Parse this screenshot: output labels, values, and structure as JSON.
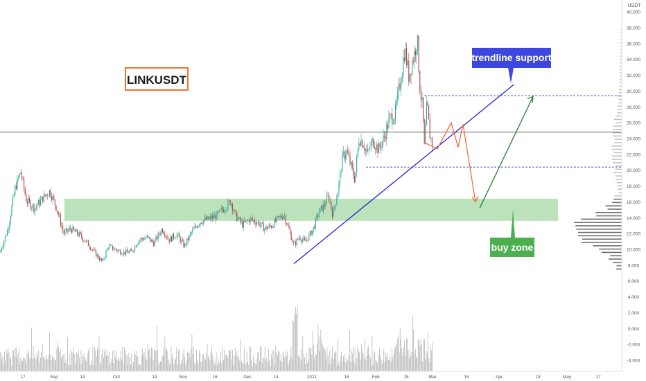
{
  "chart_data": {
    "type": "candlestick",
    "symbol": "LINKUSDT",
    "currency_label": "USDT",
    "y_ticks": [
      40,
      38,
      36,
      34,
      32,
      30,
      28,
      26,
      24,
      22,
      20,
      18,
      16,
      14,
      12,
      10,
      8,
      6,
      4,
      2,
      0,
      -2,
      -4
    ],
    "y_tick_labels": [
      "40.000",
      "38.000",
      "36.000",
      "34.000",
      "32.000",
      "30.000",
      "28.000",
      "26.000",
      "24.000",
      "22.000",
      "20.000",
      "18.000",
      "16.000",
      "14.000",
      "12.000",
      "10.000",
      "8.000",
      "6.000",
      "4.000",
      "2.000",
      "0.000",
      "-2.000",
      "-4.000"
    ],
    "ylim": [
      -5.4,
      41.5
    ],
    "x_ticks": [
      {
        "label": "17",
        "pos": 33
      },
      {
        "label": "Sep",
        "pos": 78
      },
      {
        "label": "14",
        "pos": 119
      },
      {
        "label": "Oct",
        "pos": 168
      },
      {
        "label": "19",
        "pos": 223
      },
      {
        "label": "Nov",
        "pos": 264
      },
      {
        "label": "16",
        "pos": 310
      },
      {
        "label": "Dec",
        "pos": 357
      },
      {
        "label": "14",
        "pos": 398
      },
      {
        "label": "2021",
        "pos": 450
      },
      {
        "label": "18",
        "pos": 500
      },
      {
        "label": "Feb",
        "pos": 542
      },
      {
        "label": "15",
        "pos": 586
      },
      {
        "label": "Mar",
        "pos": 624
      },
      {
        "label": "15",
        "pos": 673
      },
      {
        "label": "Apr",
        "pos": 720
      },
      {
        "label": "19",
        "pos": 776
      },
      {
        "label": "May",
        "pos": 818
      },
      {
        "label": "17",
        "pos": 863
      }
    ],
    "price_path": [
      [
        0,
        9.6
      ],
      [
        12,
        12.8
      ],
      [
        22,
        17.8
      ],
      [
        30,
        19.8
      ],
      [
        38,
        16.2
      ],
      [
        50,
        15.2
      ],
      [
        62,
        16.5
      ],
      [
        72,
        17.4
      ],
      [
        82,
        15.1
      ],
      [
        92,
        12.0
      ],
      [
        102,
        12.6
      ],
      [
        115,
        11.8
      ],
      [
        128,
        10.6
      ],
      [
        140,
        9.2
      ],
      [
        148,
        8.4
      ],
      [
        156,
        10.4
      ],
      [
        166,
        10.0
      ],
      [
        178,
        9.6
      ],
      [
        190,
        9.7
      ],
      [
        200,
        11.2
      ],
      [
        212,
        11.5
      ],
      [
        222,
        10.8
      ],
      [
        234,
        12.6
      ],
      [
        244,
        11.2
      ],
      [
        255,
        11.9
      ],
      [
        266,
        10.4
      ],
      [
        276,
        12.1
      ],
      [
        288,
        13.5
      ],
      [
        300,
        13.8
      ],
      [
        312,
        14.2
      ],
      [
        322,
        15.1
      ],
      [
        333,
        16.1
      ],
      [
        340,
        14.2
      ],
      [
        350,
        13.1
      ],
      [
        360,
        13.8
      ],
      [
        372,
        13.4
      ],
      [
        382,
        12.6
      ],
      [
        392,
        13.0
      ],
      [
        402,
        13.9
      ],
      [
        410,
        14.4
      ],
      [
        418,
        12.2
      ],
      [
        424,
        10.5
      ],
      [
        432,
        11.6
      ],
      [
        440,
        10.9
      ],
      [
        452,
        12.6
      ],
      [
        460,
        14.7
      ],
      [
        468,
        15.6
      ],
      [
        474,
        16.8
      ],
      [
        480,
        14.4
      ],
      [
        488,
        17.6
      ],
      [
        494,
        21.6
      ],
      [
        500,
        22.4
      ],
      [
        506,
        20.6
      ],
      [
        512,
        18.8
      ],
      [
        518,
        24.1
      ],
      [
        524,
        23.4
      ],
      [
        530,
        22.0
      ],
      [
        538,
        23.8
      ],
      [
        546,
        22.6
      ],
      [
        554,
        24.1
      ],
      [
        562,
        26.5
      ],
      [
        570,
        27.0
      ],
      [
        578,
        31.5
      ],
      [
        584,
        35.4
      ],
      [
        590,
        31.8
      ],
      [
        594,
        33.6
      ],
      [
        598,
        34.8
      ],
      [
        602,
        36.8
      ],
      [
        606,
        30.2
      ],
      [
        610,
        27.6
      ],
      [
        612,
        22.5
      ],
      [
        616,
        28.6
      ],
      [
        620,
        24.5
      ],
      [
        624,
        23.2
      ]
    ],
    "volume_scale_max": 12,
    "horizontal_levels": [
      {
        "value": 29.419,
        "label": "29.419",
        "style": "dashed",
        "color": "#2f3fd6"
      },
      {
        "value": 20.398,
        "label": "20.398",
        "style": "dashed",
        "color": "#2f3fd6"
      },
      {
        "value": 24.806,
        "label": "24.806",
        "sublabel": "03:15:27",
        "style": "solid",
        "color": "#555555"
      }
    ],
    "buy_zone": {
      "low": 13.6,
      "high": 16.4,
      "color": "#6abf69"
    },
    "trendline": {
      "from": [
        "Dec 22",
        8.2
      ],
      "to": [
        "Apr 3",
        30.8
      ],
      "color": "#1f1fd9"
    },
    "projection_zigzag": [
      [
        612,
        23.5
      ],
      [
        631,
        22.7
      ],
      [
        651,
        26.0
      ],
      [
        661,
        22.9
      ],
      [
        668,
        25.8
      ],
      [
        686,
        16.0
      ]
    ],
    "projection_color": "#f06b42",
    "recovery_arrow": {
      "from": [
        692,
        15.2
      ],
      "to": [
        769,
        29.3
      ],
      "color": "#2f7a2f"
    },
    "annotations": {
      "title_box": "LINKUSDT",
      "trendline_label": "trendline support",
      "buy_zone_label": "buy zone"
    },
    "colors": {
      "up": "#26a69a",
      "down": "#b0413e",
      "volume": "#8f8f8f",
      "profile": "#555555",
      "label_blue": "#3d47e0",
      "label_green": "#4caf50",
      "title_border": "#e8772e"
    }
  }
}
